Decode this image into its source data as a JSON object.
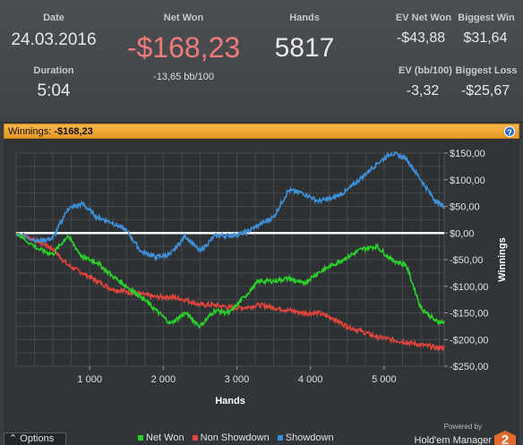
{
  "summary": {
    "date_label": "Date",
    "date": "24.03.2016",
    "duration_label": "Duration",
    "duration": "5:04",
    "net_won_label": "Net Won",
    "net_won": "-$168,23",
    "net_won_bb": "-13,65 bb/100",
    "hands_label": "Hands",
    "hands": "5817",
    "ev_net_won_label": "EV Net Won",
    "ev_net_won": "-$43,88",
    "biggest_win_label": "Biggest Win",
    "biggest_win": "$31,64",
    "ev_bb_label": "EV (bb/100)",
    "ev_bb": "-3,32",
    "biggest_loss_label": "Biggest Loss",
    "biggest_loss": "-$25,67"
  },
  "winnings_bar": {
    "label": "Winnings:",
    "value": "-$168,23",
    "help_icon": "help-icon"
  },
  "colors": {
    "net_won": "#2ad12a",
    "non_showdown": "#e0443c",
    "showdown": "#3d8fd8",
    "negative": "#ef7b7b",
    "accent": "#f2a93b"
  },
  "options_label": "Options",
  "brand": {
    "powered_by": "Powered by",
    "name": "Hold'em Manager",
    "logo_text": "2"
  },
  "chart_data": {
    "type": "line",
    "xlabel": "Hands",
    "ylabel": "Winnings",
    "xlim": [
      0,
      5817
    ],
    "ylim": [
      -250,
      150
    ],
    "x_ticks": [
      1000,
      2000,
      3000,
      4000,
      5000
    ],
    "x_tick_labels": [
      "1 000",
      "2 000",
      "3 000",
      "4 000",
      "5 000"
    ],
    "y_ticks": [
      150,
      100,
      50,
      0,
      -50,
      -100,
      -150,
      -200,
      -250
    ],
    "y_tick_labels": [
      "$150,00",
      "$100,00",
      "$50,00",
      "$0,00",
      "-$50,00",
      "-$100,00",
      "-$150,00",
      "-$200,00",
      "-$250,00"
    ],
    "grid": true,
    "legend_position": "bottom",
    "x": [
      0,
      300,
      500,
      700,
      900,
      1100,
      1300,
      1500,
      1700,
      1900,
      2100,
      2300,
      2500,
      2700,
      2900,
      3100,
      3300,
      3500,
      3700,
      3900,
      4100,
      4300,
      4500,
      4700,
      4900,
      5100,
      5300,
      5500,
      5700,
      5817
    ],
    "series": [
      {
        "name": "Net Won",
        "color": "#2ad12a",
        "values": [
          0,
          -30,
          -40,
          -5,
          -45,
          -55,
          -80,
          -100,
          -120,
          -145,
          -170,
          -150,
          -175,
          -145,
          -150,
          -120,
          -90,
          -90,
          -85,
          -95,
          -75,
          -60,
          -45,
          -30,
          -25,
          -50,
          -60,
          -140,
          -165,
          -168
        ]
      },
      {
        "name": "Non Showdown",
        "color": "#e0443c",
        "values": [
          0,
          -15,
          -30,
          -60,
          -75,
          -90,
          -105,
          -110,
          -115,
          -120,
          -120,
          -125,
          -135,
          -135,
          -140,
          -140,
          -135,
          -140,
          -145,
          -150,
          -150,
          -160,
          -175,
          -185,
          -195,
          -200,
          -205,
          -210,
          -215,
          -216
        ]
      },
      {
        "name": "Showdown",
        "color": "#3d8fd8",
        "values": [
          0,
          -15,
          -10,
          45,
          55,
          30,
          20,
          5,
          -35,
          -45,
          -40,
          -5,
          -35,
          -5,
          -5,
          0,
          15,
          30,
          80,
          75,
          60,
          65,
          80,
          105,
          130,
          150,
          140,
          100,
          60,
          50
        ]
      }
    ]
  }
}
